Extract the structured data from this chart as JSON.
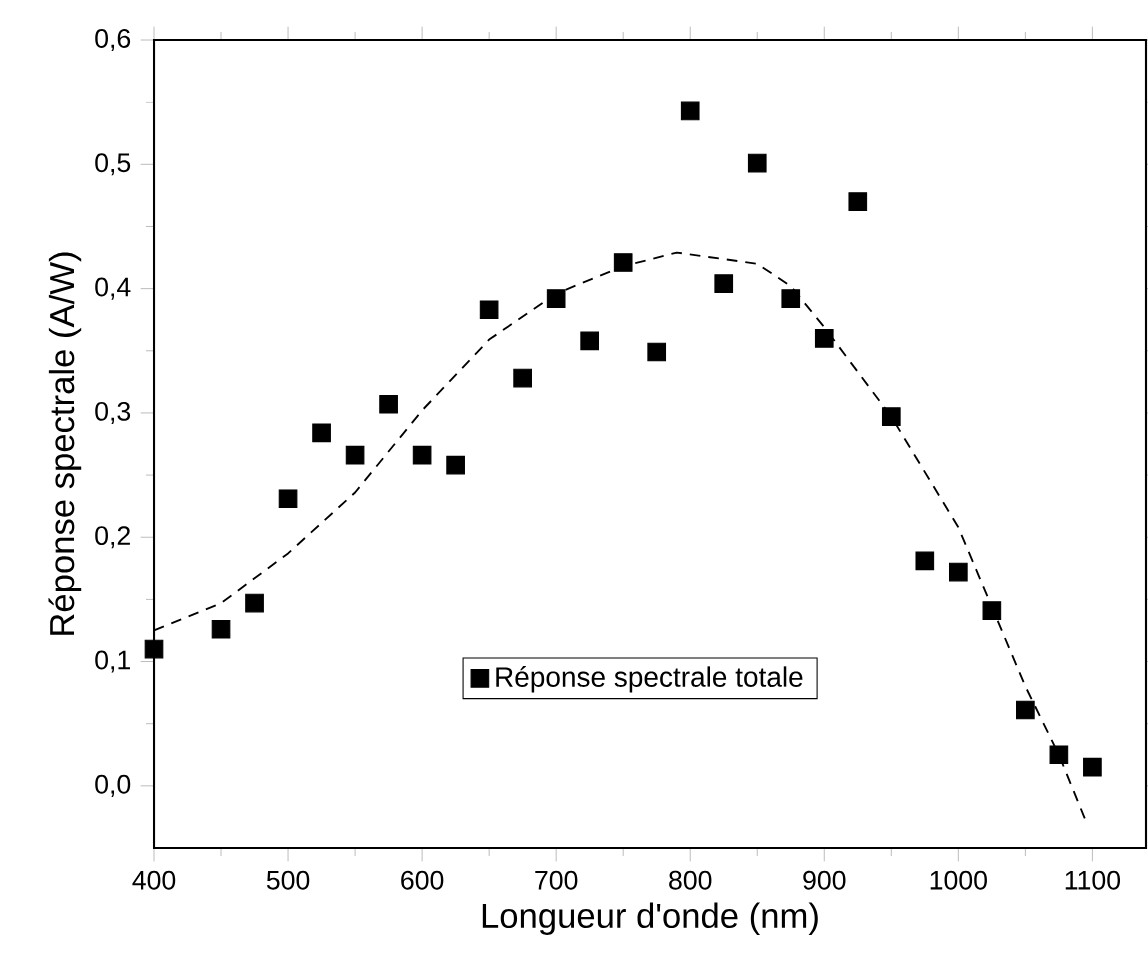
{
  "chart_data": {
    "type": "scatter",
    "xlabel": "Longueur d'onde (nm)",
    "ylabel": "Réponse spectrale (A/W)",
    "x": [
      400,
      450,
      475,
      500,
      525,
      550,
      575,
      600,
      625,
      650,
      675,
      700,
      725,
      750,
      775,
      800,
      825,
      850,
      875,
      900,
      925,
      950,
      975,
      1000,
      1025,
      1050,
      1075,
      1100
    ],
    "series": [
      {
        "name": "Réponse spectrale totale",
        "color": "#000000",
        "marker": "square",
        "values": [
          0.11,
          0.126,
          0.147,
          0.231,
          0.284,
          0.266,
          0.307,
          0.266,
          0.258,
          0.383,
          0.328,
          0.392,
          0.358,
          0.421,
          0.349,
          0.543,
          0.404,
          0.501,
          0.392,
          0.36,
          0.47,
          0.297,
          0.181,
          0.172,
          0.141,
          0.061,
          0.025,
          0.015
        ]
      },
      {
        "type": "line",
        "color": "#000000",
        "marker": "none",
        "line_style": "dashed",
        "x": [
          400,
          450,
          500,
          550,
          600,
          650,
          700,
          750,
          790,
          850,
          875,
          900,
          950,
          1000,
          1050,
          1075,
          1095
        ],
        "values": [
          0.125,
          0.147,
          0.187,
          0.236,
          0.302,
          0.359,
          0.396,
          0.418,
          0.429,
          0.42,
          0.402,
          0.369,
          0.297,
          0.208,
          0.08,
          0.025,
          -0.028
        ]
      }
    ],
    "xlim": [
      400,
      1140
    ],
    "ylim": [
      -0.05,
      0.6
    ],
    "xticks": [
      400,
      500,
      600,
      700,
      800,
      900,
      1000,
      1100
    ],
    "yticks": [
      {
        "value": 0.0,
        "label": "0,0"
      },
      {
        "value": 0.1,
        "label": "0,1"
      },
      {
        "value": 0.2,
        "label": "0,2"
      },
      {
        "value": 0.3,
        "label": "0,3"
      },
      {
        "value": 0.4,
        "label": "0,4"
      },
      {
        "value": 0.5,
        "label": "0,5"
      },
      {
        "value": 0.6,
        "label": "0,6"
      }
    ],
    "legend": "bottom"
  }
}
